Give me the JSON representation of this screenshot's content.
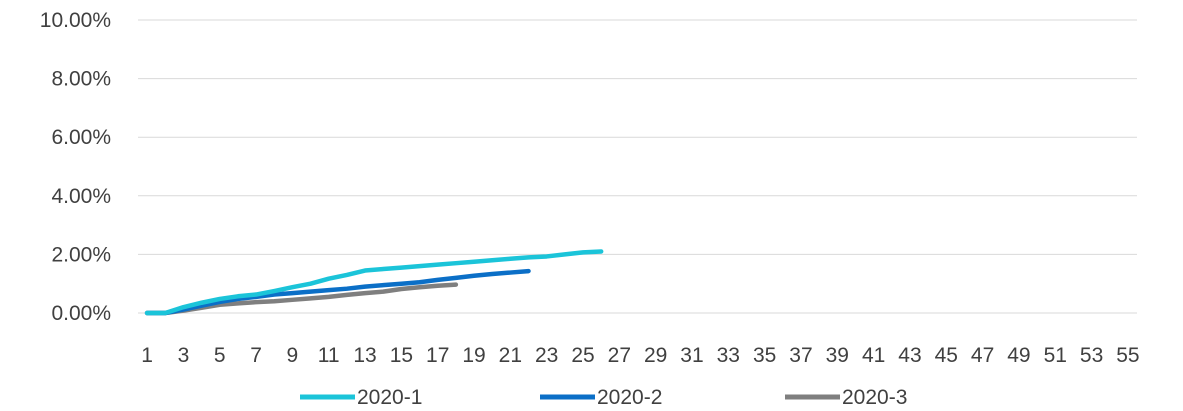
{
  "chart_data": {
    "type": "line",
    "title": "",
    "xlabel": "",
    "ylabel": "",
    "x": [
      1,
      2,
      3,
      4,
      5,
      6,
      7,
      8,
      9,
      10,
      11,
      12,
      13,
      14,
      15,
      16,
      17,
      18,
      19,
      20,
      21,
      22,
      23,
      24,
      25,
      26,
      27,
      28,
      29,
      30,
      31,
      32,
      33,
      34,
      35,
      36,
      37,
      38,
      39,
      40,
      41,
      42,
      43,
      44,
      45,
      46,
      47,
      48,
      49,
      50,
      51,
      52,
      53,
      54,
      55
    ],
    "x_tick_labels": [
      "1",
      "3",
      "5",
      "7",
      "9",
      "11",
      "13",
      "15",
      "17",
      "19",
      "21",
      "23",
      "25",
      "27",
      "29",
      "31",
      "33",
      "35",
      "37",
      "39",
      "41",
      "43",
      "45",
      "47",
      "49",
      "51",
      "53",
      "55"
    ],
    "ylim": [
      0,
      0.1
    ],
    "y_ticks": [
      0,
      0.02,
      0.04,
      0.06,
      0.08,
      0.1
    ],
    "y_tick_labels": [
      "0.00%",
      "2.00%",
      "4.00%",
      "6.00%",
      "8.00%",
      "10.00%"
    ],
    "grid": true,
    "legend_position": "bottom",
    "series": [
      {
        "name": "2020-1",
        "color": "#1bc4d9",
        "x": [
          1,
          2,
          3,
          4,
          5,
          6,
          7,
          8,
          9,
          10,
          11,
          12,
          13,
          14,
          15,
          16,
          17,
          18,
          19,
          20,
          21,
          22,
          23,
          24,
          25,
          26
        ],
        "values": [
          0.0,
          0.0,
          0.002,
          0.0035,
          0.0048,
          0.0057,
          0.0063,
          0.0075,
          0.0088,
          0.01,
          0.0117,
          0.013,
          0.0145,
          0.015,
          0.0155,
          0.016,
          0.0165,
          0.017,
          0.0175,
          0.018,
          0.0185,
          0.019,
          0.0193,
          0.02,
          0.0207,
          0.021
        ]
      },
      {
        "name": "2020-2",
        "color": "#0b6fc7",
        "x": [
          1,
          2,
          3,
          4,
          5,
          6,
          7,
          8,
          9,
          10,
          11,
          12,
          13,
          14,
          15,
          16,
          17,
          18,
          19,
          20,
          21,
          22
        ],
        "values": [
          0.0,
          0.0,
          0.0012,
          0.0025,
          0.0038,
          0.0048,
          0.0055,
          0.0063,
          0.0068,
          0.0073,
          0.0078,
          0.0083,
          0.009,
          0.0095,
          0.01,
          0.0105,
          0.0113,
          0.012,
          0.0127,
          0.0133,
          0.0138,
          0.0143
        ]
      },
      {
        "name": "2020-3",
        "color": "#7f7f7f",
        "x": [
          1,
          2,
          3,
          4,
          5,
          6,
          7,
          8,
          9,
          10,
          11,
          12,
          13,
          14,
          15,
          16,
          17,
          18
        ],
        "values": [
          0.0,
          0.0,
          0.0008,
          0.0018,
          0.0028,
          0.0033,
          0.0037,
          0.004,
          0.0045,
          0.005,
          0.0055,
          0.0062,
          0.0068,
          0.0073,
          0.0082,
          0.0088,
          0.0093,
          0.0097
        ]
      }
    ]
  }
}
